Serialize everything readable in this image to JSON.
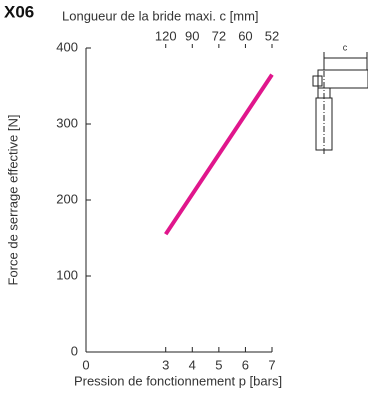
{
  "chart_data": {
    "type": "line",
    "title": "X06",
    "x2label": "Longueur de la bride maxi. c [mm]",
    "xlabel": "Pression de fonctionnement p [bars]",
    "ylabel": "Force de serrage effective [N]",
    "x": [
      3,
      7
    ],
    "series": [
      {
        "name": "X06",
        "color": "#e0168c",
        "values": [
          155,
          365
        ]
      }
    ],
    "xlim": [
      0,
      7
    ],
    "xticks": [
      0,
      3,
      4,
      5,
      6,
      7
    ],
    "ylim": [
      0,
      400
    ],
    "yticks": [
      0,
      100,
      200,
      300,
      400
    ],
    "x2ticks": [
      {
        "value": 3,
        "label": "120"
      },
      {
        "value": 4,
        "label": "90"
      },
      {
        "value": 5,
        "label": "72"
      },
      {
        "value": 6,
        "label": "60"
      },
      {
        "value": 7,
        "label": "52"
      }
    ],
    "diagram_label": "c"
  }
}
